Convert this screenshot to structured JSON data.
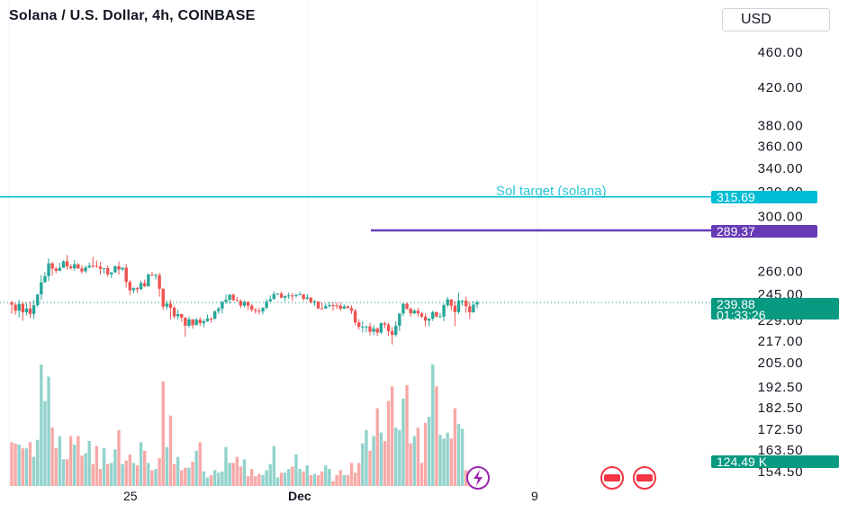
{
  "header": {
    "title": "Solana / U.S. Dollar, 4h, COINBASE",
    "currency": "USD"
  },
  "price_lines": {
    "target_label": "Sol target (solana)",
    "target_value": "315.69",
    "target_color": "#00bcd4",
    "purple_value": "289.37",
    "purple_color": "#673ab7",
    "current_price": "239.88",
    "countdown": "01:33:26",
    "current_color": "#089981",
    "volume_label": "124.49 K"
  },
  "chart_data": {
    "type": "candlestick",
    "x_ticks": [
      "25",
      "Dec",
      "9"
    ],
    "y_ticks": [
      "460.00",
      "420.00",
      "380.00",
      "360.00",
      "340.00",
      "320.00",
      "300.00",
      "260.00",
      "245.00",
      "229.00",
      "217.00",
      "205.00",
      "192.50",
      "182.50",
      "172.50",
      "163.50",
      "154.50"
    ],
    "y_scale": "log",
    "ylim": [
      154.5,
      460
    ],
    "horizontal_lines": [
      {
        "value": 315.69,
        "label": "Sol target (solana)"
      },
      {
        "value": 289.37
      }
    ],
    "last_price": 239.88,
    "up_color": "#26a69a",
    "down_color": "#ef5350",
    "candles": [
      [
        240.0,
        238.5,
        240.9,
        233.0
      ],
      [
        238.5,
        234.8,
        239.9,
        232.3
      ],
      [
        234.8,
        239.0,
        241.3,
        230.7
      ],
      [
        239.0,
        233.8,
        240.2,
        228.8
      ],
      [
        233.8,
        236.2,
        239.7,
        231.9
      ],
      [
        236.2,
        232.8,
        240.2,
        230.4
      ],
      [
        232.8,
        238.2,
        241.5,
        229.7
      ],
      [
        238.2,
        245.0,
        245.0,
        236.9
      ],
      [
        245.0,
        252.8,
        257.7,
        241.4
      ],
      [
        252.8,
        256.9,
        259.5,
        252.6
      ],
      [
        256.9,
        265.6,
        269.0,
        253.6
      ],
      [
        265.6,
        262.0,
        266.4,
        257.4
      ],
      [
        262.0,
        260.5,
        263.3,
        258.8
      ],
      [
        260.5,
        262.5,
        266.1,
        260.3
      ],
      [
        262.5,
        267.0,
        267.6,
        262.5
      ],
      [
        267.0,
        263.4,
        271.4,
        261.3
      ],
      [
        263.4,
        262.2,
        265.2,
        261.3
      ],
      [
        262.2,
        264.9,
        268.0,
        260.5
      ],
      [
        264.9,
        262.1,
        265.8,
        261.7
      ],
      [
        262.1,
        260.1,
        264.5,
        258.4
      ],
      [
        260.1,
        262.8,
        264.0,
        259.0
      ],
      [
        262.8,
        264.0,
        266.2,
        262.1
      ],
      [
        264.0,
        263.9,
        270.1,
        262.5
      ],
      [
        263.9,
        263.4,
        267.5,
        262.6
      ],
      [
        263.4,
        261.8,
        266.6,
        258.0
      ],
      [
        261.8,
        262.3,
        262.3,
        258.5
      ],
      [
        262.3,
        258.1,
        264.2,
        256.6
      ],
      [
        258.1,
        259.4,
        259.4,
        255.5
      ],
      [
        259.4,
        263.6,
        264.3,
        259.4
      ],
      [
        263.6,
        261.4,
        266.9,
        258.0
      ],
      [
        261.4,
        262.6,
        262.8,
        260.2
      ],
      [
        262.6,
        253.0,
        265.0,
        249.4
      ],
      [
        253.0,
        247.6,
        254.2,
        244.5
      ],
      [
        247.6,
        249.0,
        249.6,
        245.6
      ],
      [
        249.0,
        248.3,
        249.9,
        245.9
      ],
      [
        248.3,
        252.3,
        253.8,
        247.8
      ],
      [
        252.3,
        250.3,
        254.6,
        249.6
      ],
      [
        250.3,
        257.9,
        258.9,
        249.8
      ],
      [
        257.9,
        257.5,
        259.7,
        257.0
      ],
      [
        257.5,
        257.6,
        258.7,
        254.7
      ],
      [
        257.6,
        248.6,
        259.1,
        243.5
      ],
      [
        248.6,
        237.3,
        249.0,
        235.2
      ],
      [
        237.3,
        239.1,
        240.9,
        235.5
      ],
      [
        239.1,
        236.6,
        241.5,
        229.6
      ],
      [
        236.6,
        231.4,
        237.8,
        230.0
      ],
      [
        231.4,
        232.7,
        235.4,
        229.3
      ],
      [
        232.7,
        230.6,
        233.0,
        228.1
      ],
      [
        230.6,
        225.8,
        231.0,
        219.4
      ],
      [
        225.8,
        229.6,
        231.2,
        224.6
      ],
      [
        229.6,
        226.1,
        229.7,
        224.0
      ],
      [
        226.1,
        229.4,
        230.5,
        226.0
      ],
      [
        229.4,
        227.3,
        230.8,
        225.7
      ],
      [
        227.3,
        228.4,
        229.6,
        224.9
      ],
      [
        228.4,
        230.1,
        232.6,
        228.1
      ],
      [
        230.1,
        229.8,
        230.7,
        227.7
      ],
      [
        229.8,
        234.5,
        234.9,
        229.8
      ],
      [
        234.5,
        236.1,
        237.1,
        232.9
      ],
      [
        236.1,
        240.2,
        240.9,
        233.2
      ],
      [
        240.2,
        241.6,
        245.0,
        239.0
      ],
      [
        241.6,
        244.8,
        245.0,
        239.1
      ],
      [
        244.8,
        241.4,
        245.5,
        240.7
      ],
      [
        241.4,
        240.9,
        243.3,
        240.7
      ],
      [
        240.9,
        237.9,
        241.8,
        236.4
      ],
      [
        237.9,
        240.3,
        241.2,
        236.8
      ],
      [
        240.3,
        237.9,
        240.6,
        235.3
      ],
      [
        237.9,
        235.4,
        238.8,
        234.2
      ],
      [
        235.4,
        234.7,
        236.5,
        233.1
      ],
      [
        234.7,
        234.4,
        236.6,
        232.5
      ],
      [
        234.4,
        236.6,
        236.8,
        232.6
      ],
      [
        236.6,
        240.5,
        242.0,
        235.3
      ],
      [
        240.5,
        241.9,
        244.3,
        240.5
      ],
      [
        241.9,
        245.2,
        247.0,
        241.8
      ],
      [
        245.2,
        245.5,
        245.7,
        244.5
      ],
      [
        245.5,
        242.9,
        246.8,
        242.6
      ],
      [
        242.9,
        244.0,
        244.1,
        240.6
      ],
      [
        244.0,
        244.3,
        246.2,
        242.1
      ],
      [
        244.3,
        244.0,
        245.9,
        240.9
      ],
      [
        244.0,
        244.5,
        245.4,
        242.9
      ],
      [
        244.5,
        245.0,
        246.8,
        244.5
      ],
      [
        245.0,
        242.1,
        245.2,
        240.9
      ],
      [
        242.1,
        243.0,
        245.1,
        241.6
      ],
      [
        243.0,
        240.2,
        243.0,
        239.2
      ],
      [
        240.2,
        240.5,
        241.6,
        237.6
      ],
      [
        240.5,
        236.2,
        240.6,
        235.9
      ],
      [
        236.2,
        236.1,
        239.9,
        235.6
      ],
      [
        236.1,
        237.6,
        239.4,
        236.8
      ],
      [
        237.6,
        238.2,
        240.2,
        236.8
      ],
      [
        238.2,
        238.1,
        240.1,
        234.7
      ],
      [
        238.1,
        237.9,
        240.0,
        235.9
      ],
      [
        237.9,
        236.1,
        239.9,
        234.7
      ],
      [
        236.1,
        237.4,
        238.7,
        236.1
      ],
      [
        237.4,
        236.4,
        238.1,
        236.4
      ],
      [
        236.4,
        234.7,
        238.0,
        232.8
      ],
      [
        234.7,
        227.7,
        235.9,
        226.2
      ],
      [
        227.7,
        225.2,
        229.6,
        223.5
      ],
      [
        225.2,
        225.3,
        228.4,
        221.8
      ],
      [
        225.3,
        225.4,
        225.9,
        222.0
      ],
      [
        225.4,
        222.3,
        227.6,
        220.2
      ],
      [
        222.3,
        224.1,
        226.2,
        220.4
      ],
      [
        224.1,
        221.8,
        224.8,
        219.9
      ],
      [
        221.8,
        227.3,
        227.8,
        221.1
      ],
      [
        227.3,
        226.5,
        228.1,
        224.4
      ],
      [
        226.5,
        222.6,
        227.4,
        219.8
      ],
      [
        222.6,
        220.5,
        225.0,
        215.0
      ],
      [
        220.5,
        225.8,
        228.5,
        219.5
      ],
      [
        225.8,
        233.1,
        233.3,
        222.7
      ],
      [
        233.1,
        239.1,
        239.4,
        231.5
      ],
      [
        239.1,
        236.0,
        239.9,
        235.3
      ],
      [
        236.0,
        233.2,
        236.8,
        231.2
      ],
      [
        233.2,
        234.8,
        236.0,
        232.6
      ],
      [
        234.8,
        233.2,
        236.6,
        231.2
      ],
      [
        233.2,
        231.2,
        233.8,
        230.4
      ],
      [
        231.2,
        228.8,
        233.2,
        225.5
      ],
      [
        228.8,
        229.9,
        230.3,
        225.6
      ],
      [
        229.9,
        234.0,
        234.8,
        228.6
      ],
      [
        234.0,
        231.3,
        234.1,
        230.6
      ],
      [
        231.3,
        231.3,
        233.4,
        230.7
      ],
      [
        231.3,
        238.2,
        239.2,
        228.5
      ],
      [
        238.2,
        241.8,
        243.4,
        236.9
      ],
      [
        241.8,
        237.9,
        241.9,
        234.8
      ],
      [
        237.9,
        233.9,
        240.9,
        225.4
      ],
      [
        233.9,
        241.0,
        246.1,
        232.8
      ],
      [
        241.0,
        241.0,
        241.5,
        238.0
      ],
      [
        241.0,
        237.5,
        243.6,
        233.5
      ],
      [
        237.5,
        233.8,
        240.2,
        229.8
      ],
      [
        233.8,
        238.6,
        240.8,
        233.6
      ],
      [
        238.6,
        239.9,
        241.3,
        236.3
      ]
    ],
    "volumes": [
      0.36,
      0.35,
      0.34,
      0.31,
      0.31,
      0.36,
      0.24,
      0.38,
      1.0,
      0.7,
      0.9,
      0.48,
      0.31,
      0.41,
      0.22,
      0.22,
      0.41,
      0.34,
      0.41,
      0.25,
      0.27,
      0.37,
      0.18,
      0.33,
      0.14,
      0.31,
      0.18,
      0.19,
      0.3,
      0.46,
      0.18,
      0.21,
      0.26,
      0.19,
      0.17,
      0.36,
      0.29,
      0.19,
      0.13,
      0.14,
      0.23,
      0.86,
      0.32,
      0.58,
      0.18,
      0.24,
      0.13,
      0.15,
      0.15,
      0.2,
      0.29,
      0.36,
      0.12,
      0.07,
      0.09,
      0.13,
      0.11,
      0.12,
      0.32,
      0.19,
      0.19,
      0.24,
      0.16,
      0.22,
      0.08,
      0.14,
      0.08,
      0.1,
      0.09,
      0.13,
      0.18,
      0.33,
      0.07,
      0.11,
      0.11,
      0.14,
      0.16,
      0.26,
      0.14,
      0.12,
      0.17,
      0.09,
      0.1,
      0.09,
      0.12,
      0.17,
      0.14,
      0.04,
      0.09,
      0.13,
      0.09,
      0.09,
      0.19,
      0.11,
      0.19,
      0.35,
      0.46,
      0.29,
      0.41,
      0.64,
      0.44,
      0.37,
      0.7,
      0.82,
      0.48,
      0.46,
      0.72,
      0.83,
      0.35,
      0.41,
      0.48,
      0.19,
      0.52,
      0.57,
      1.0,
      0.82,
      0.42,
      0.39,
      0.44,
      0.39,
      0.64,
      0.51,
      0.47,
      0.13,
      0.12,
      0.13,
      0.07
    ]
  }
}
